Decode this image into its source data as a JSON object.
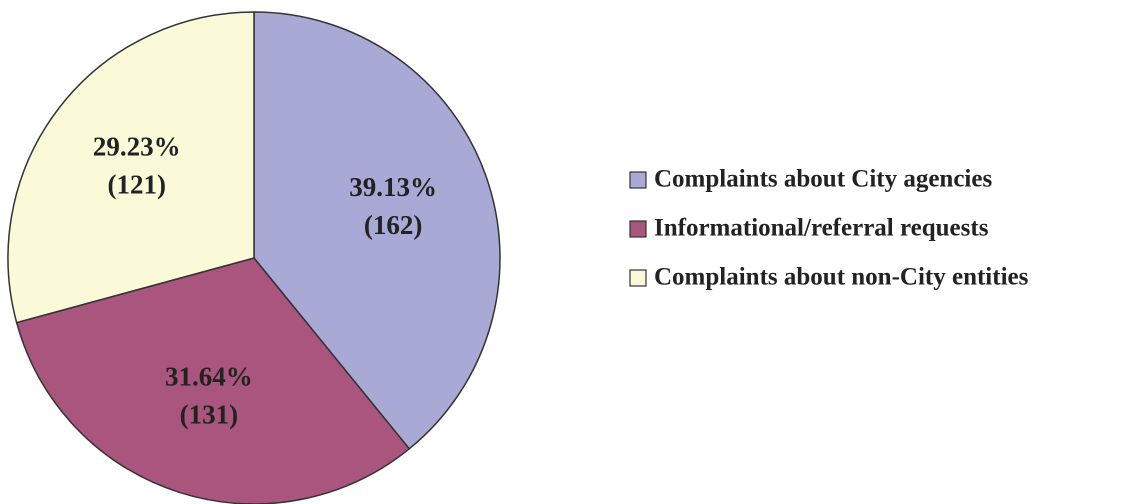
{
  "chart_data": {
    "type": "pie",
    "categories": [
      "Complaints about City agencies",
      "Informational/referral requests",
      "Complaints about non-City entities"
    ],
    "values": [
      39.13,
      31.64,
      29.23
    ],
    "value_labels": [
      "39.13%",
      "31.64%",
      "29.23%"
    ],
    "counts": [
      162,
      131,
      121
    ],
    "count_labels": [
      "(162)",
      "(131)",
      "(121)"
    ],
    "colors": [
      "#a9a9d6",
      "#a9557e",
      "#fafad8"
    ],
    "legend": "right"
  }
}
